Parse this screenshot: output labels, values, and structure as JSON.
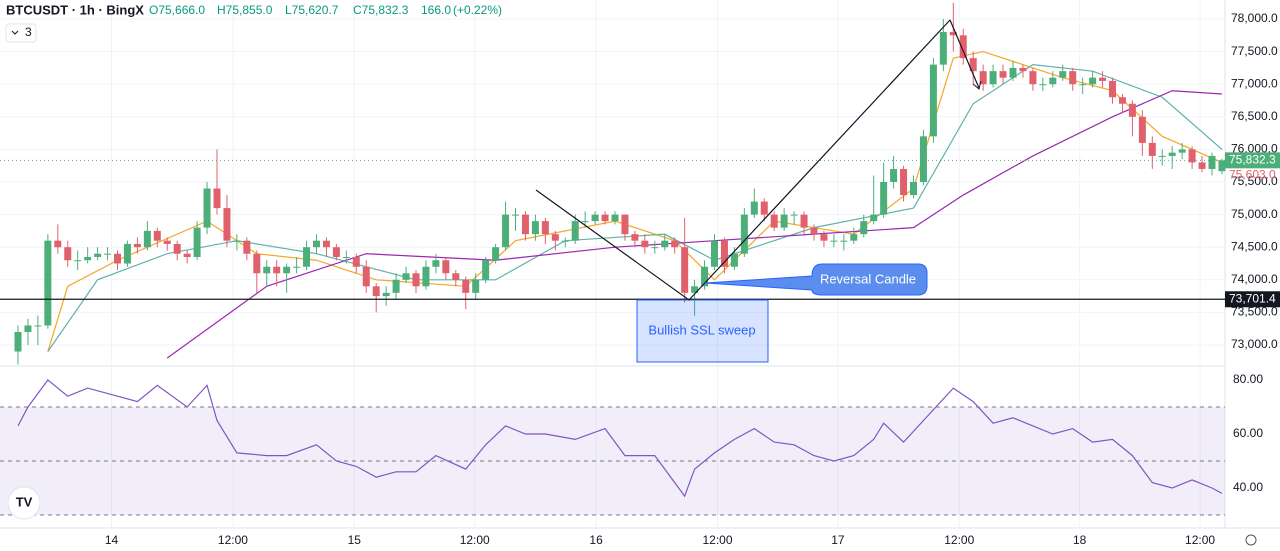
{
  "chart_data": {
    "type": "candlestick",
    "header": {
      "symbol": "BTCUSDT · 1h · BingX",
      "open": "O75,666.0",
      "high": "H75,855.0",
      "low": "L75,620.7",
      "close": "C75,832.3",
      "volume": "166.0",
      "change": "(+0.22%)",
      "indicators": "3"
    },
    "up_color": "#4caf7a",
    "down_color": "#e0616b",
    "candles": [
      [
        72900,
        73300,
        72700,
        73200
      ],
      [
        73200,
        73400,
        73000,
        73300
      ],
      [
        73300,
        73450,
        73000,
        73300
      ],
      [
        73300,
        74700,
        73250,
        74600
      ],
      [
        74600,
        74850,
        74400,
        74500
      ],
      [
        74500,
        74600,
        74200,
        74300
      ],
      [
        74300,
        74450,
        74150,
        74300
      ],
      [
        74300,
        74500,
        74250,
        74350
      ],
      [
        74350,
        74500,
        74300,
        74400
      ],
      [
        74400,
        74500,
        74300,
        74400
      ],
      [
        74400,
        74450,
        74150,
        74250
      ],
      [
        74250,
        74600,
        74200,
        74550
      ],
      [
        74550,
        74650,
        74400,
        74500
      ],
      [
        74500,
        74900,
        74450,
        74750
      ],
      [
        74750,
        74800,
        74500,
        74600
      ],
      [
        74600,
        74650,
        74450,
        74550
      ],
      [
        74550,
        74600,
        74300,
        74400
      ],
      [
        74400,
        74450,
        74250,
        74350
      ],
      [
        74350,
        74900,
        74300,
        74800
      ],
      [
        74800,
        75500,
        74700,
        75400
      ],
      [
        75400,
        76000,
        75000,
        75100
      ],
      [
        75100,
        75300,
        74500,
        74600
      ],
      [
        74600,
        74700,
        74450,
        74600
      ],
      [
        74600,
        74650,
        74300,
        74400
      ],
      [
        74400,
        74450,
        73800,
        74100
      ],
      [
        74100,
        74300,
        73900,
        74200
      ],
      [
        74200,
        74300,
        73900,
        74100
      ],
      [
        74100,
        74250,
        73800,
        74200
      ],
      [
        74200,
        74350,
        74100,
        74200
      ],
      [
        74200,
        74600,
        74150,
        74500
      ],
      [
        74500,
        74700,
        74400,
        74600
      ],
      [
        74600,
        74650,
        74350,
        74500
      ],
      [
        74500,
        74550,
        74300,
        74350
      ],
      [
        74350,
        74450,
        74250,
        74350
      ],
      [
        74350,
        74400,
        74100,
        74200
      ],
      [
        74200,
        74300,
        73800,
        73900
      ],
      [
        73900,
        73950,
        73500,
        73750
      ],
      [
        73750,
        73900,
        73600,
        73800
      ],
      [
        73800,
        74100,
        73700,
        74000
      ],
      [
        74000,
        74200,
        73950,
        74100
      ],
      [
        74100,
        74150,
        73800,
        73900
      ],
      [
        73900,
        74300,
        73850,
        74200
      ],
      [
        74200,
        74400,
        74100,
        74300
      ],
      [
        74300,
        74350,
        74000,
        74100
      ],
      [
        74100,
        74150,
        73900,
        74000
      ],
      [
        74000,
        74050,
        73550,
        73800
      ],
      [
        73800,
        74100,
        73700,
        74000
      ],
      [
        74000,
        74350,
        73950,
        74300
      ],
      [
        74300,
        74550,
        74250,
        74500
      ],
      [
        74500,
        75200,
        74450,
        75000
      ],
      [
        75000,
        75100,
        74750,
        75000
      ],
      [
        75000,
        75050,
        74600,
        74700
      ],
      [
        74700,
        75000,
        74600,
        74900
      ],
      [
        74900,
        74950,
        74550,
        74700
      ],
      [
        74700,
        74750,
        74450,
        74600
      ],
      [
        74600,
        74650,
        74500,
        74600
      ],
      [
        74600,
        75000,
        74550,
        74900
      ],
      [
        74900,
        75050,
        74800,
        74900
      ],
      [
        74900,
        75050,
        74850,
        75000
      ],
      [
        75000,
        75050,
        74850,
        74900
      ],
      [
        74900,
        75050,
        74850,
        75000
      ],
      [
        75000,
        75000,
        74600,
        74700
      ],
      [
        74700,
        74750,
        74500,
        74600
      ],
      [
        74600,
        74700,
        74400,
        74500
      ],
      [
        74500,
        74600,
        74400,
        74500
      ],
      [
        74500,
        74700,
        74450,
        74600
      ],
      [
        74600,
        74650,
        74400,
        74500
      ],
      [
        74500,
        74950,
        73650,
        73800
      ],
      [
        73800,
        74000,
        73450,
        73900
      ],
      [
        73900,
        74300,
        73850,
        74200
      ],
      [
        74200,
        74700,
        74150,
        74600
      ],
      [
        74600,
        74650,
        74100,
        74200
      ],
      [
        74200,
        74500,
        74150,
        74400
      ],
      [
        74400,
        75100,
        74350,
        75000
      ],
      [
        75000,
        75400,
        74950,
        75200
      ],
      [
        75200,
        75250,
        74900,
        75000
      ],
      [
        75000,
        75050,
        74750,
        74800
      ],
      [
        74800,
        75100,
        74750,
        75000
      ],
      [
        75000,
        75050,
        74850,
        75000
      ],
      [
        75000,
        75050,
        74700,
        74800
      ],
      [
        74800,
        74850,
        74600,
        74700
      ],
      [
        74700,
        74750,
        74500,
        74600
      ],
      [
        74600,
        74700,
        74500,
        74600
      ],
      [
        74600,
        74700,
        74450,
        74600
      ],
      [
        74600,
        74800,
        74550,
        74700
      ],
      [
        74700,
        75000,
        74650,
        74900
      ],
      [
        74900,
        75600,
        74850,
        75000
      ],
      [
        75000,
        75800,
        74950,
        75500
      ],
      [
        75500,
        75900,
        75400,
        75700
      ],
      [
        75700,
        75750,
        75200,
        75300
      ],
      [
        75300,
        75600,
        75250,
        75500
      ],
      [
        75500,
        76300,
        75450,
        76200
      ],
      [
        76200,
        77400,
        76100,
        77300
      ],
      [
        77300,
        78000,
        77200,
        77800
      ],
      [
        77800,
        78250,
        77500,
        77750
      ],
      [
        77750,
        77850,
        77300,
        77400
      ],
      [
        77400,
        77500,
        77000,
        77200
      ],
      [
        77200,
        77300,
        76900,
        77000
      ],
      [
        77000,
        77300,
        76950,
        77200
      ],
      [
        77200,
        77300,
        77000,
        77100
      ],
      [
        77100,
        77350,
        77050,
        77250
      ],
      [
        77250,
        77300,
        77100,
        77200
      ],
      [
        77200,
        77250,
        76900,
        77000
      ],
      [
        77000,
        77100,
        76900,
        77000
      ],
      [
        77000,
        77200,
        76950,
        77100
      ],
      [
        77100,
        77300,
        77050,
        77200
      ],
      [
        77200,
        77250,
        76900,
        77000
      ],
      [
        77000,
        77100,
        76850,
        77000
      ],
      [
        77000,
        77200,
        76950,
        77100
      ],
      [
        77100,
        77200,
        76950,
        77050
      ],
      [
        77050,
        77100,
        76700,
        76800
      ],
      [
        76800,
        76850,
        76550,
        76700
      ],
      [
        76700,
        76750,
        76200,
        76500
      ],
      [
        76500,
        76600,
        75900,
        76100
      ],
      [
        76100,
        76200,
        75700,
        75900
      ],
      [
        75900,
        76000,
        75750,
        75900
      ],
      [
        75900,
        76050,
        75700,
        75950
      ],
      [
        75950,
        76100,
        75850,
        76000
      ],
      [
        76000,
        76050,
        75700,
        75800
      ],
      [
        75800,
        75900,
        75650,
        75700
      ],
      [
        75700,
        75950,
        75600,
        75900
      ],
      [
        75666,
        75855,
        75620.7,
        75832.3
      ]
    ],
    "ma": [
      {
        "color": "#f5a623",
        "x": [
          3,
          5,
          10,
          19,
          24,
          30,
          36,
          45,
          50,
          60,
          66,
          70,
          76,
          84,
          90,
          94,
          97,
          105,
          110,
          115,
          121
        ],
        "values": [
          72900,
          73900,
          74300,
          74900,
          74400,
          74300,
          74000,
          73900,
          74600,
          74900,
          74600,
          74000,
          74900,
          74700,
          75400,
          77400,
          77500,
          77100,
          76900,
          76200,
          75800
        ]
      },
      {
        "color": "#5fb3a8",
        "x": [
          3,
          8,
          15,
          22,
          30,
          40,
          48,
          55,
          65,
          70,
          80,
          90,
          96,
          102,
          108,
          115,
          121
        ],
        "values": [
          72900,
          74000,
          74400,
          74600,
          74400,
          74000,
          74000,
          74600,
          74700,
          74300,
          74800,
          75100,
          76700,
          77300,
          77200,
          76800,
          76000
        ]
      },
      {
        "color": "#9c27b0",
        "x": [
          15,
          25,
          35,
          48,
          60,
          70,
          80,
          90,
          95,
          102,
          110,
          116,
          121
        ],
        "values": [
          72800,
          73900,
          74400,
          74300,
          74500,
          74600,
          74700,
          74800,
          75300,
          75900,
          76500,
          76900,
          76850
        ]
      }
    ],
    "ylim": [
      72700,
      78300
    ],
    "yticks": [
      {
        "value": 73000,
        "label": "73,000.0"
      },
      {
        "value": 73500,
        "label": "73,500.0"
      },
      {
        "value": 74000,
        "label": "74,000.0"
      },
      {
        "value": 74500,
        "label": "74,500.0"
      },
      {
        "value": 75000,
        "label": "75,000.0"
      },
      {
        "value": 75500,
        "label": "75,500.0"
      },
      {
        "value": 76000,
        "label": "76,000.0"
      },
      {
        "value": 76500,
        "label": "76,500.0"
      },
      {
        "value": 77000,
        "label": "77,000.0"
      },
      {
        "value": 77500,
        "label": "77,500.0"
      },
      {
        "value": 78000,
        "label": "78,000.0"
      }
    ],
    "price_labels": [
      {
        "value": 75832.3,
        "label": "75,832.3",
        "color": "#4caf7a"
      },
      {
        "value": 75603.0,
        "label": "75,603.0",
        "color": "#e0616b"
      },
      {
        "value": 73701.4,
        "label": "73,701.4",
        "color": "#131722"
      }
    ],
    "xlim": [
      -0.6,
      123
    ],
    "xticks": [
      {
        "value": 9.4,
        "label": "14"
      },
      {
        "value": 21.6,
        "label": "12:00"
      },
      {
        "value": 33.8,
        "label": "15"
      },
      {
        "value": 45.9,
        "label": "12:00"
      },
      {
        "value": 58.1,
        "label": "16"
      },
      {
        "value": 70.3,
        "label": "12:00"
      },
      {
        "value": 82.4,
        "label": "17"
      },
      {
        "value": 94.6,
        "label": "12:00"
      },
      {
        "value": 106.7,
        "label": "18"
      },
      {
        "value": 118.8,
        "label": "12:00"
      }
    ],
    "annotations": {
      "reversal": "Reversal Candle",
      "sweep": "Bullish SSL sweep"
    },
    "rsi": {
      "color": "#7e57c2",
      "x": [
        0,
        1,
        3,
        5,
        7,
        10,
        12,
        14,
        17,
        19,
        20,
        22,
        25,
        27,
        30,
        32,
        34,
        36,
        38,
        40,
        42,
        45,
        47,
        49,
        51,
        53,
        56,
        59,
        61,
        64,
        67,
        68,
        70,
        72,
        74,
        76,
        78,
        80,
        82,
        84,
        86,
        87,
        89,
        91,
        93,
        94,
        96,
        98,
        100,
        102,
        104,
        106,
        108,
        110,
        112,
        114,
        116,
        118,
        120,
        121
      ],
      "values": [
        63,
        70,
        80,
        74,
        77,
        74,
        72,
        78,
        70,
        78,
        65,
        53,
        52,
        52,
        56,
        50,
        48,
        44,
        46,
        46,
        52,
        47,
        56,
        63,
        60,
        60,
        58,
        62,
        52,
        52,
        37,
        47,
        53,
        58,
        62,
        57,
        56,
        52,
        50,
        52,
        58,
        64,
        57,
        65,
        73,
        77,
        72,
        64,
        66,
        63,
        60,
        62,
        57,
        58,
        52,
        42,
        40,
        43,
        40,
        38
      ],
      "ylim": [
        25,
        85
      ],
      "yticks": [
        {
          "value": 40,
          "label": "40.00"
        },
        {
          "value": 60,
          "label": "60.00"
        },
        {
          "value": 80,
          "label": "80.00"
        }
      ],
      "bands": [
        30,
        50,
        70
      ]
    }
  }
}
